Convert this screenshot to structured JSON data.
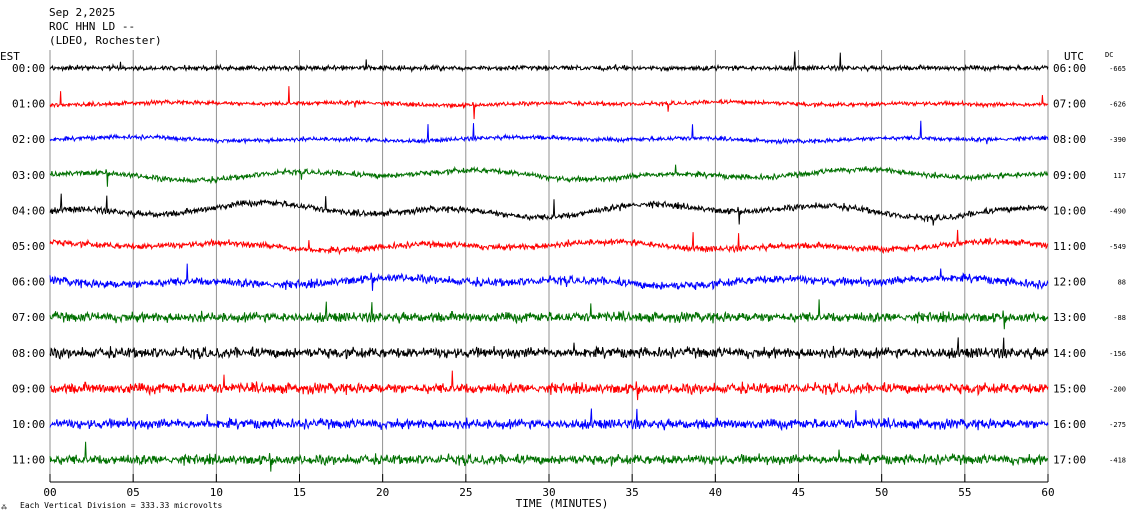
{
  "header": {
    "date": "Sep 2,2025",
    "station": "ROC HHN LD --",
    "network": "(LDEO, Rochester)"
  },
  "left_zone_label": "EST",
  "right_zone_label": "UTC",
  "dc_label": "DC",
  "footer_scale_note": "Each Vertical Division =  333.33 microvolts",
  "chart_data": {
    "type": "line",
    "xlabel": "TIME (MINUTES)",
    "xlim": [
      0,
      60
    ],
    "x_ticks": [
      "00",
      "05",
      "10",
      "15",
      "20",
      "25",
      "30",
      "35",
      "40",
      "45",
      "50",
      "55",
      "60"
    ],
    "grid": "vertical lines every 5 minutes",
    "series": [
      {
        "est": "00:00",
        "utc": "06:00",
        "dc": "-665",
        "color": "#000000"
      },
      {
        "est": "01:00",
        "utc": "07:00",
        "dc": "-626",
        "color": "#ff0000"
      },
      {
        "est": "02:00",
        "utc": "08:00",
        "dc": "-390",
        "color": "#0000ff"
      },
      {
        "est": "03:00",
        "utc": "09:00",
        "dc": "117",
        "color": "#007000"
      },
      {
        "est": "04:00",
        "utc": "10:00",
        "dc": "-490",
        "color": "#000000"
      },
      {
        "est": "05:00",
        "utc": "11:00",
        "dc": "-549",
        "color": "#ff0000"
      },
      {
        "est": "06:00",
        "utc": "12:00",
        "dc": "88",
        "color": "#0000ff"
      },
      {
        "est": "07:00",
        "utc": "13:00",
        "dc": "-88",
        "color": "#007000"
      },
      {
        "est": "08:00",
        "utc": "14:00",
        "dc": "-156",
        "color": "#000000"
      },
      {
        "est": "09:00",
        "utc": "15:00",
        "dc": "-200",
        "color": "#ff0000"
      },
      {
        "est": "10:00",
        "utc": "16:00",
        "dc": "-275",
        "color": "#0000ff"
      },
      {
        "est": "11:00",
        "utc": "17:00",
        "dc": "-418",
        "color": "#007000"
      }
    ]
  }
}
